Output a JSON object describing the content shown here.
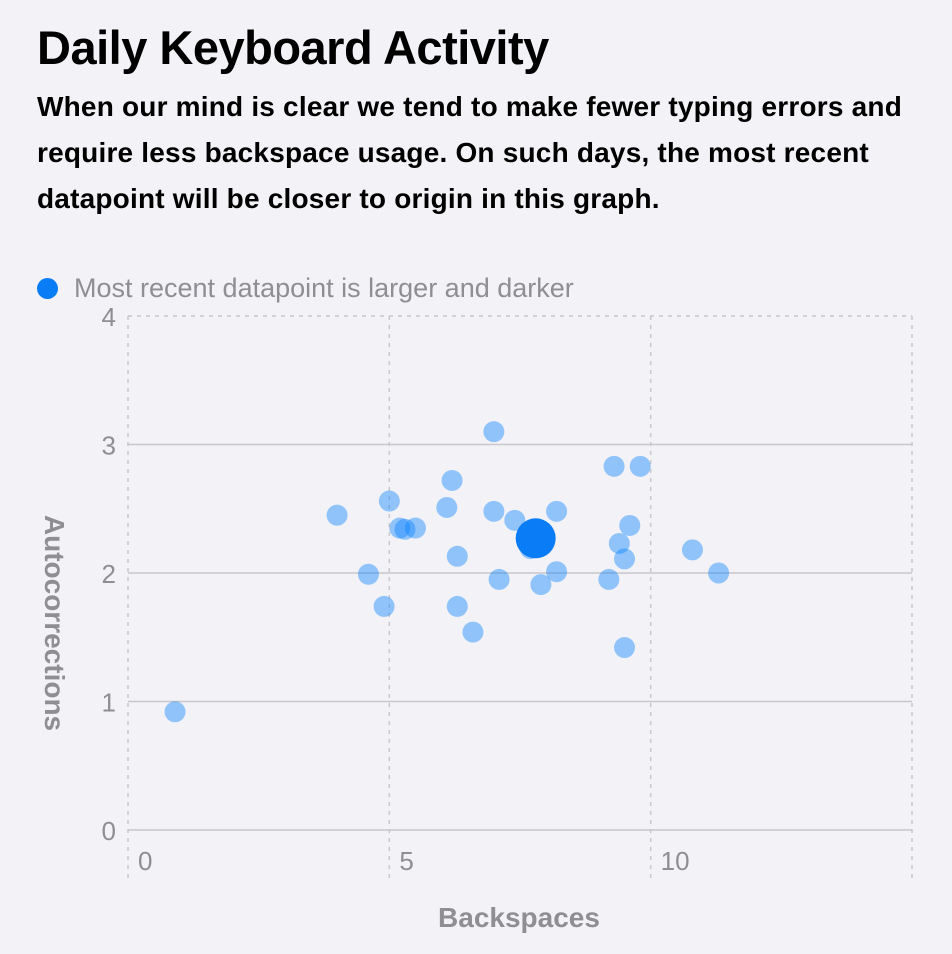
{
  "title": "Daily Keyboard Activity",
  "subtitle": "When our mind is clear we tend to make fewer typing errors and require less backspace usage. On such days, the most recent datapoint will be closer to origin in this graph.",
  "legend": {
    "label": "Most recent datapoint is larger and darker",
    "swatch_color": "#0a7cf5"
  },
  "colors": {
    "point": "#0a84ff",
    "point_opacity": 0.42,
    "recent_point": "#0a7cf5",
    "grid": "#c7c7cc",
    "tick_label": "#8e8e93",
    "axis_label": "#8e8e93"
  },
  "chart_data": {
    "type": "scatter",
    "xlabel": "Backspaces",
    "ylabel": "Autocorrections",
    "xlim": [
      0,
      15
    ],
    "ylim": [
      0,
      4
    ],
    "xticks": [
      0,
      5,
      10
    ],
    "yticks": [
      0,
      1,
      2,
      3,
      4
    ],
    "grid": true,
    "legend_position": "top-left",
    "series": [
      {
        "values": [
          {
            "x": 0.9,
            "y": 0.92
          },
          {
            "x": 4.0,
            "y": 2.45
          },
          {
            "x": 4.6,
            "y": 1.99
          },
          {
            "x": 4.9,
            "y": 1.74
          },
          {
            "x": 5.0,
            "y": 2.56
          },
          {
            "x": 5.2,
            "y": 2.35
          },
          {
            "x": 5.3,
            "y": 2.34
          },
          {
            "x": 5.5,
            "y": 2.35
          },
          {
            "x": 6.1,
            "y": 2.51
          },
          {
            "x": 6.2,
            "y": 2.72
          },
          {
            "x": 6.3,
            "y": 2.13
          },
          {
            "x": 6.3,
            "y": 1.74
          },
          {
            "x": 6.6,
            "y": 1.54
          },
          {
            "x": 7.0,
            "y": 3.1
          },
          {
            "x": 7.0,
            "y": 2.48
          },
          {
            "x": 7.1,
            "y": 1.95
          },
          {
            "x": 7.4,
            "y": 2.41
          },
          {
            "x": 7.7,
            "y": 2.19
          },
          {
            "x": 7.9,
            "y": 1.91
          },
          {
            "x": 8.2,
            "y": 2.48
          },
          {
            "x": 8.2,
            "y": 2.01
          },
          {
            "x": 9.2,
            "y": 1.95
          },
          {
            "x": 9.3,
            "y": 2.83
          },
          {
            "x": 9.4,
            "y": 2.23
          },
          {
            "x": 9.5,
            "y": 2.11
          },
          {
            "x": 9.5,
            "y": 1.42
          },
          {
            "x": 9.6,
            "y": 2.37
          },
          {
            "x": 9.8,
            "y": 2.83
          },
          {
            "x": 10.8,
            "y": 2.18
          },
          {
            "x": 11.3,
            "y": 2.0
          }
        ]
      }
    ],
    "most_recent": {
      "x": 7.8,
      "y": 2.27
    }
  }
}
